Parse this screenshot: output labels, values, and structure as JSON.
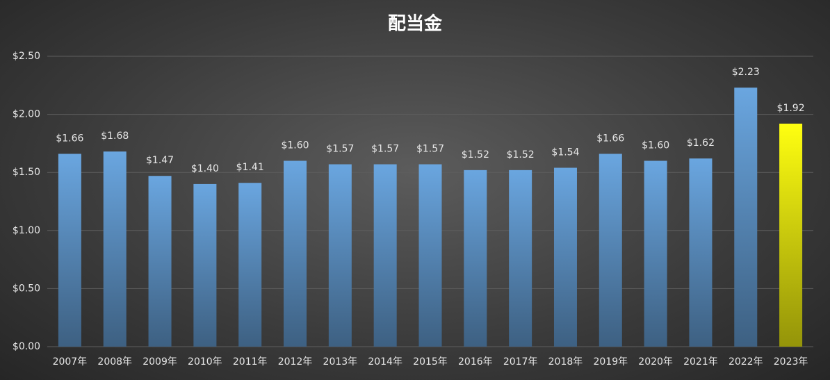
{
  "chart_data": {
    "type": "bar",
    "title": "配当金",
    "categories": [
      "2007年",
      "2008年",
      "2009年",
      "2010年",
      "2011年",
      "2012年",
      "2013年",
      "2014年",
      "2015年",
      "2016年",
      "2017年",
      "2018年",
      "2019年",
      "2020年",
      "2021年",
      "2022年",
      "2023年"
    ],
    "values": [
      1.66,
      1.68,
      1.47,
      1.4,
      1.41,
      1.6,
      1.57,
      1.57,
      1.57,
      1.52,
      1.52,
      1.54,
      1.66,
      1.6,
      1.62,
      2.23,
      1.92
    ],
    "value_labels": [
      "$1.66",
      "$1.68",
      "$1.47",
      "$1.40",
      "$1.41",
      "$1.60",
      "$1.57",
      "$1.57",
      "$1.57",
      "$1.52",
      "$1.52",
      "$1.54",
      "$1.66",
      "$1.60",
      "$1.62",
      "$2.23",
      "$1.92"
    ],
    "colors": [
      "#6aa6e0",
      "#6aa6e0",
      "#6aa6e0",
      "#6aa6e0",
      "#6aa6e0",
      "#6aa6e0",
      "#6aa6e0",
      "#6aa6e0",
      "#6aa6e0",
      "#6aa6e0",
      "#6aa6e0",
      "#6aa6e0",
      "#6aa6e0",
      "#6aa6e0",
      "#6aa6e0",
      "#6aa6e0",
      "#ffff10"
    ],
    "ylim": [
      0,
      2.5
    ],
    "yticks": [
      {
        "value": 0,
        "label": "$0.00"
      },
      {
        "value": 0.5,
        "label": "$0.50"
      },
      {
        "value": 1,
        "label": "$1.00"
      },
      {
        "value": 1.5,
        "label": "$1.50"
      },
      {
        "value": 2,
        "label": "$2.00"
      },
      {
        "value": 2.5,
        "label": "$2.50"
      }
    ],
    "grid": true
  }
}
